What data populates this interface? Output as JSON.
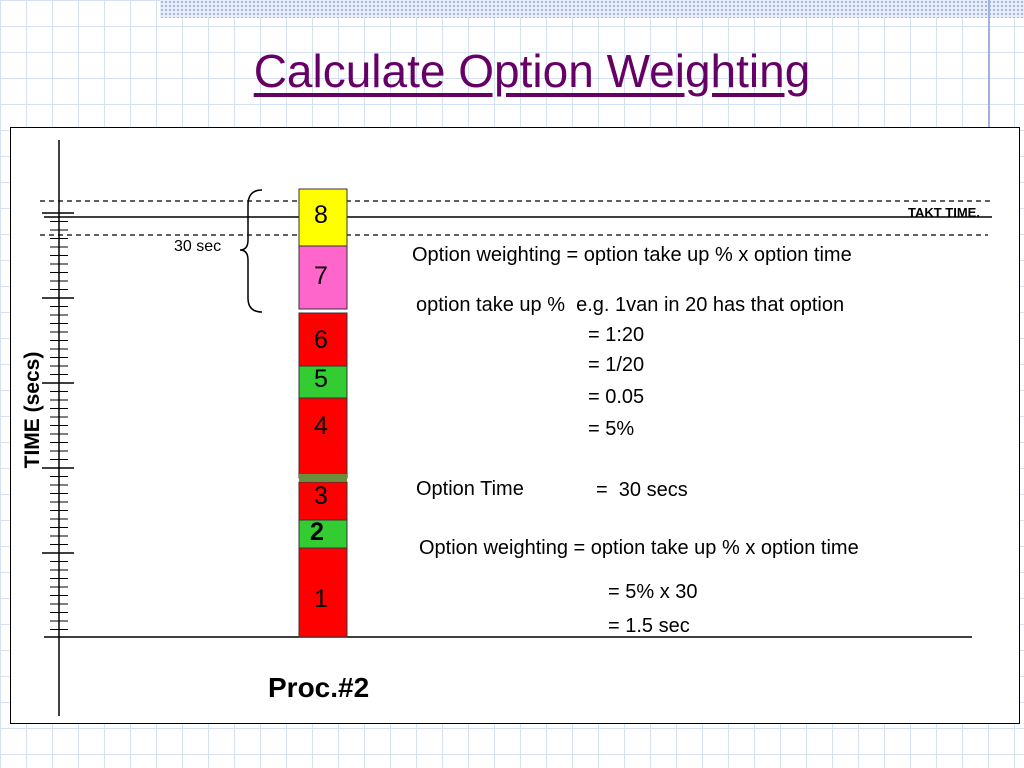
{
  "slide": {
    "title": "Calculate Option Weighting",
    "y_axis_label": "TIME (secs)",
    "process_label": "Proc.#2",
    "takt_label": "TAKT TIME.",
    "bracket_label": "30 sec"
  },
  "bar_segments": [
    {
      "label": "1",
      "color": "#ff0000"
    },
    {
      "label": "2",
      "color": "#33cc33",
      "bold": true
    },
    {
      "label": "3",
      "color": "#ff0000"
    },
    {
      "label": "4",
      "color": "#ff0000"
    },
    {
      "label": "5",
      "color": "#33cc33"
    },
    {
      "label": "6",
      "color": "#ff0000"
    },
    {
      "label": "7",
      "color": "#ff66cc"
    },
    {
      "label": "8",
      "color": "#ffff00"
    }
  ],
  "explanation": {
    "line1": "Option weighting = option take up % x option time",
    "line2": "option take up %  e.g. 1van in 20 has that option",
    "line3": "= 1:20",
    "line4": "= 1/20",
    "line5": "= 0.05",
    "line6": "= 5%",
    "option_time_label": "Option Time",
    "option_time_value": "=  30 secs",
    "line7": "Option weighting = option take up % x option time",
    "line8": "= 5% x 30",
    "line9": "= 1.5 sec"
  },
  "colors": {
    "title": "#660066",
    "grid": "#d6e0f3",
    "red": "#ff0000",
    "green": "#33cc33",
    "pink": "#ff66cc",
    "yellow": "#ffff00"
  }
}
